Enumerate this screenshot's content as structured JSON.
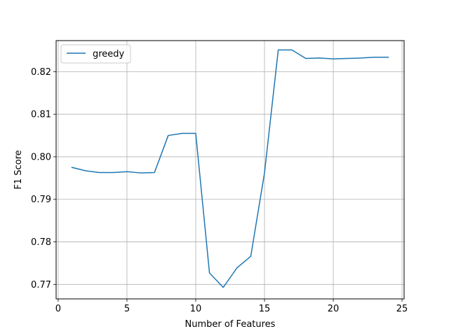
{
  "chart_data": {
    "type": "line",
    "title": "",
    "xlabel": "Number of Features",
    "ylabel": "F1 Score",
    "xlim": [
      -0.15,
      25.15
    ],
    "ylim": [
      0.7666,
      0.8273
    ],
    "xticks": [
      0,
      5,
      10,
      15,
      20,
      25
    ],
    "yticks": [
      0.77,
      0.78,
      0.79,
      0.8,
      0.81,
      0.82
    ],
    "xtick_labels": [
      "0",
      "5",
      "10",
      "15",
      "20",
      "25"
    ],
    "ytick_labels": [
      "0.77",
      "0.78",
      "0.79",
      "0.80",
      "0.81",
      "0.82"
    ],
    "grid": true,
    "legend_position": "top-left",
    "series": [
      {
        "name": "greedy",
        "color": "#1f77b4",
        "x": [
          1,
          2,
          3,
          4,
          5,
          6,
          7,
          8,
          9,
          10,
          11,
          12,
          13,
          14,
          15,
          16,
          17,
          18,
          19,
          20,
          21,
          22,
          23,
          24
        ],
        "y": [
          0.7975,
          0.7967,
          0.7963,
          0.7963,
          0.7965,
          0.7962,
          0.7963,
          0.805,
          0.8055,
          0.8055,
          0.7727,
          0.7693,
          0.7739,
          0.7766,
          0.7962,
          0.8251,
          0.8251,
          0.8231,
          0.8232,
          0.823,
          0.8231,
          0.8232,
          0.8234,
          0.8234
        ]
      }
    ]
  }
}
